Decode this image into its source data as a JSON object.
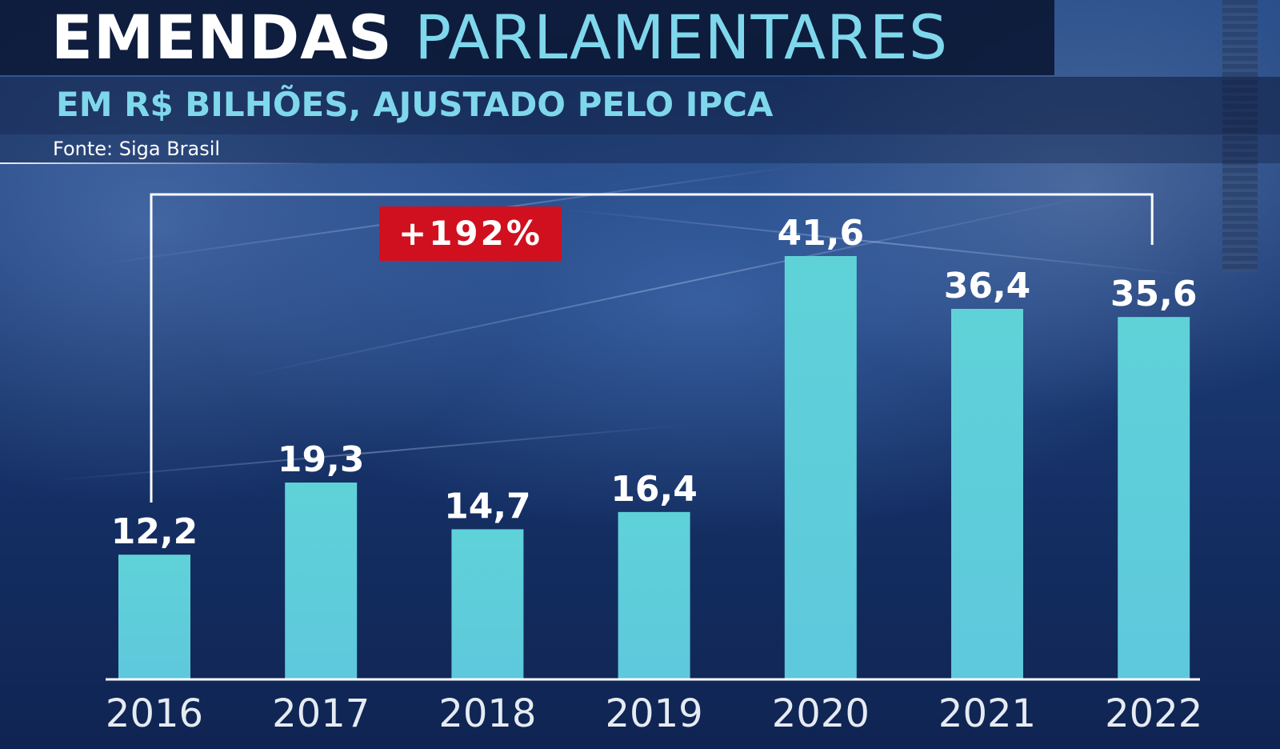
{
  "header": {
    "title_part1": "EMENDAS",
    "title_part2": "PARLAMENTARES",
    "subtitle": "EM R$ BILHÕES, AJUSTADO PELO IPCA",
    "source": "Fonte: Siga Brasil"
  },
  "colors": {
    "bar": "#5ec8dc",
    "title_accent": "#7fd7ec",
    "badge": "#d0101e",
    "axis": "#ffffff"
  },
  "chart_data": {
    "type": "bar",
    "categories": [
      "2016",
      "2017",
      "2018",
      "2019",
      "2020",
      "2021",
      "2022"
    ],
    "values": [
      12.2,
      19.3,
      14.7,
      16.4,
      41.6,
      36.4,
      35.6
    ],
    "value_labels": [
      "12,2",
      "19,3",
      "14,7",
      "16,4",
      "41,6",
      "36,4",
      "35,6"
    ],
    "ylim": [
      0,
      41.6
    ],
    "grid": false,
    "annotation": {
      "text": "+192%",
      "from_category": "2016",
      "to_category": "2022"
    }
  }
}
